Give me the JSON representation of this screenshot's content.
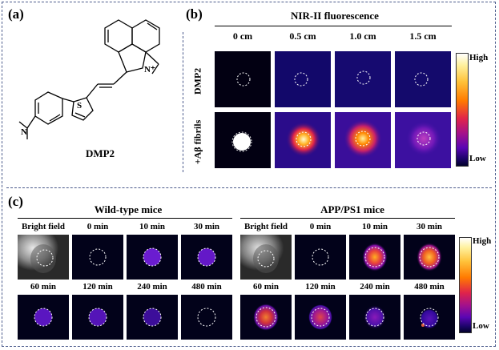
{
  "panels": {
    "a": "(a)",
    "b": "(b)",
    "c": "(c)"
  },
  "panel_a": {
    "compound": "DMP2",
    "n_plus": "N⁺"
  },
  "panel_b": {
    "title": "NIR-II fluorescence",
    "columns": [
      "0 cm",
      "0.5 cm",
      "1.0 cm",
      "1.5 cm"
    ],
    "rows": [
      "DMP2",
      "+Aβ fibrils"
    ],
    "colorbar": {
      "high": "High",
      "low": "Low"
    }
  },
  "panel_c": {
    "groups": [
      {
        "title": "Wild-type mice",
        "row1": [
          "Bright field",
          "0 min",
          "10 min",
          "30 min"
        ],
        "row2": [
          "60 min",
          "120 min",
          "240 min",
          "480 min"
        ]
      },
      {
        "title": "APP/PS1 mice",
        "row1": [
          "Bright field",
          "0 min",
          "10 min",
          "30 min"
        ],
        "row2": [
          "60 min",
          "120 min",
          "240 min",
          "480 min"
        ]
      }
    ],
    "colorbar": {
      "high": "High",
      "low": "Low"
    }
  },
  "colors": {
    "frame_dash": "#4b5b8c",
    "tile_bg": "#02021a"
  }
}
